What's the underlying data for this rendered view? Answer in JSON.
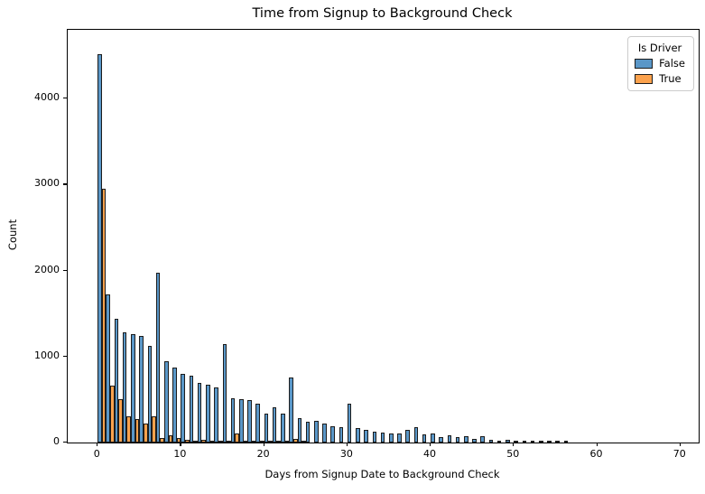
{
  "title": "Time from Signup to Background Check",
  "axes": {
    "xlabel": "Days from Signup Date to Background Check",
    "ylabel": "Count"
  },
  "legend": {
    "title": "Is Driver",
    "items": [
      {
        "label": "False",
        "color": "#5a97c8"
      },
      {
        "label": "True",
        "color": "#fca24d"
      }
    ]
  },
  "colors": {
    "bar_edge": "#1c1c1c",
    "false_fill": "#5a97c8",
    "true_fill": "#fca24d",
    "legend_border": "#cccccc",
    "text": "#000000"
  },
  "chart_data": {
    "type": "bar",
    "subtype": "dodged-histogram",
    "title": "Time from Signup to Background Check",
    "xlabel": "Days from Signup Date to Background Check",
    "ylabel": "Count",
    "legend_title": "Is Driver",
    "legend_position": "upper right",
    "grid": false,
    "bin_width_days": 1,
    "categories": [
      0,
      1,
      2,
      3,
      4,
      5,
      6,
      7,
      8,
      9,
      10,
      11,
      12,
      13,
      14,
      15,
      16,
      17,
      18,
      19,
      20,
      21,
      22,
      23,
      24,
      25,
      26,
      27,
      28,
      29,
      30,
      31,
      32,
      33,
      34,
      35,
      36,
      37,
      38,
      39,
      40,
      41,
      42,
      43,
      44,
      45,
      46,
      47,
      48,
      49,
      50,
      51,
      52,
      53,
      54,
      55,
      56
    ],
    "series": [
      {
        "name": "False",
        "color": "#5a97c8",
        "values": [
          4520,
          1720,
          1440,
          1280,
          1265,
          1240,
          1120,
          1980,
          950,
          870,
          800,
          780,
          690,
          675,
          640,
          1150,
          510,
          500,
          495,
          455,
          340,
          415,
          340,
          760,
          285,
          240,
          250,
          220,
          185,
          180,
          455,
          170,
          150,
          125,
          115,
          110,
          105,
          150,
          180,
          95,
          110,
          60,
          85,
          65,
          70,
          40,
          70,
          30,
          22,
          28,
          18,
          22,
          15,
          18,
          12,
          10,
          8
        ]
      },
      {
        "name": "True",
        "color": "#fca24d",
        "values": [
          2950,
          660,
          500,
          300,
          275,
          220,
          310,
          55,
          80,
          50,
          30,
          25,
          35,
          25,
          18,
          25,
          100,
          25,
          22,
          15,
          10,
          15,
          10,
          40,
          12,
          0,
          0,
          0,
          0,
          0,
          0,
          0,
          0,
          0,
          0,
          0,
          0,
          0,
          0,
          0,
          0,
          0,
          0,
          0,
          0,
          0,
          0,
          0,
          0,
          0,
          0,
          0,
          0,
          0,
          0,
          0,
          0
        ]
      }
    ],
    "xlim": [
      -3.6,
      72.2
    ],
    "ylim": [
      0,
      4800
    ],
    "xticks": [
      0,
      10,
      20,
      30,
      40,
      50,
      60,
      70
    ],
    "yticks": [
      0,
      1000,
      2000,
      3000,
      4000
    ]
  }
}
